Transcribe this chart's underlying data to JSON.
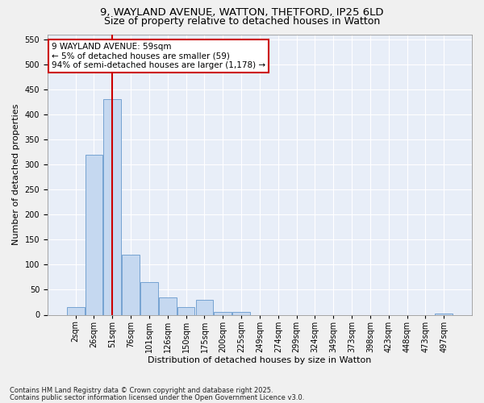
{
  "title_line1": "9, WAYLAND AVENUE, WATTON, THETFORD, IP25 6LD",
  "title_line2": "Size of property relative to detached houses in Watton",
  "xlabel": "Distribution of detached houses by size in Watton",
  "ylabel": "Number of detached properties",
  "categories": [
    "2sqm",
    "26sqm",
    "51sqm",
    "76sqm",
    "101sqm",
    "126sqm",
    "150sqm",
    "175sqm",
    "200sqm",
    "225sqm",
    "249sqm",
    "274sqm",
    "299sqm",
    "324sqm",
    "349sqm",
    "373sqm",
    "398sqm",
    "423sqm",
    "448sqm",
    "473sqm",
    "497sqm"
  ],
  "values": [
    15,
    320,
    430,
    120,
    65,
    35,
    15,
    30,
    5,
    5,
    0,
    0,
    0,
    0,
    0,
    0,
    0,
    0,
    0,
    0,
    2
  ],
  "bar_color": "#c5d8f0",
  "bar_edgecolor": "#6699cc",
  "background_color": "#e8eef8",
  "grid_color": "#ffffff",
  "red_line_x": 2,
  "annotation_text": "9 WAYLAND AVENUE: 59sqm\n← 5% of detached houses are smaller (59)\n94% of semi-detached houses are larger (1,178) →",
  "annotation_box_facecolor": "#ffffff",
  "annotation_box_edgecolor": "#cc0000",
  "ylim": [
    0,
    560
  ],
  "yticks": [
    0,
    50,
    100,
    150,
    200,
    250,
    300,
    350,
    400,
    450,
    500,
    550
  ],
  "footnote1": "Contains HM Land Registry data © Crown copyright and database right 2025.",
  "footnote2": "Contains public sector information licensed under the Open Government Licence v3.0.",
  "fig_facecolor": "#f0f0f0",
  "title1_fontsize": 9.5,
  "title2_fontsize": 9,
  "axis_fontsize": 8,
  "tick_fontsize": 7,
  "annot_fontsize": 7.5
}
